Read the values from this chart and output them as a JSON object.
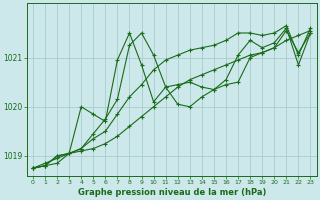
{
  "bg_color": "#cce8ea",
  "grid_color": "#aacccc",
  "line_color": "#1a6b1a",
  "title": "Graphe pression niveau de la mer (hPa)",
  "xlim": [
    -0.5,
    23.5
  ],
  "ylim": [
    1018.6,
    1022.1
  ],
  "yticks": [
    1019,
    1020,
    1021
  ],
  "xticks": [
    0,
    1,
    2,
    3,
    4,
    5,
    6,
    7,
    8,
    9,
    10,
    11,
    12,
    13,
    14,
    15,
    16,
    17,
    18,
    19,
    20,
    21,
    22,
    23
  ],
  "series": [
    [
      1018.75,
      1018.8,
      1018.85,
      1019.05,
      1019.1,
      1019.15,
      1019.25,
      1019.4,
      1019.6,
      1019.8,
      1020.0,
      1020.2,
      1020.4,
      1020.55,
      1020.65,
      1020.75,
      1020.85,
      1020.95,
      1021.05,
      1021.1,
      1021.2,
      1021.35,
      1021.45,
      1021.55
    ],
    [
      1018.75,
      1018.85,
      1018.95,
      1019.05,
      1019.15,
      1019.45,
      1019.75,
      1020.15,
      1021.25,
      1021.5,
      1021.05,
      1020.4,
      1020.05,
      1020.0,
      1020.2,
      1020.35,
      1020.45,
      1020.5,
      1021.0,
      1021.1,
      1021.2,
      1021.55,
      1021.1,
      1021.5
    ],
    [
      1018.75,
      1018.8,
      1019.0,
      1019.05,
      1020.0,
      1019.85,
      1019.7,
      1020.95,
      1021.5,
      1020.85,
      1020.1,
      1020.4,
      1020.45,
      1020.5,
      1020.4,
      1020.35,
      1020.55,
      1021.05,
      1021.35,
      1021.2,
      1021.3,
      1021.6,
      1020.85,
      1021.5
    ],
    [
      1018.75,
      1018.8,
      1019.0,
      1019.05,
      1019.15,
      1019.35,
      1019.5,
      1019.85,
      1020.2,
      1020.45,
      1020.75,
      1020.95,
      1021.05,
      1021.15,
      1021.2,
      1021.25,
      1021.35,
      1021.5,
      1021.5,
      1021.45,
      1021.5,
      1021.65,
      1021.05,
      1021.6
    ]
  ]
}
